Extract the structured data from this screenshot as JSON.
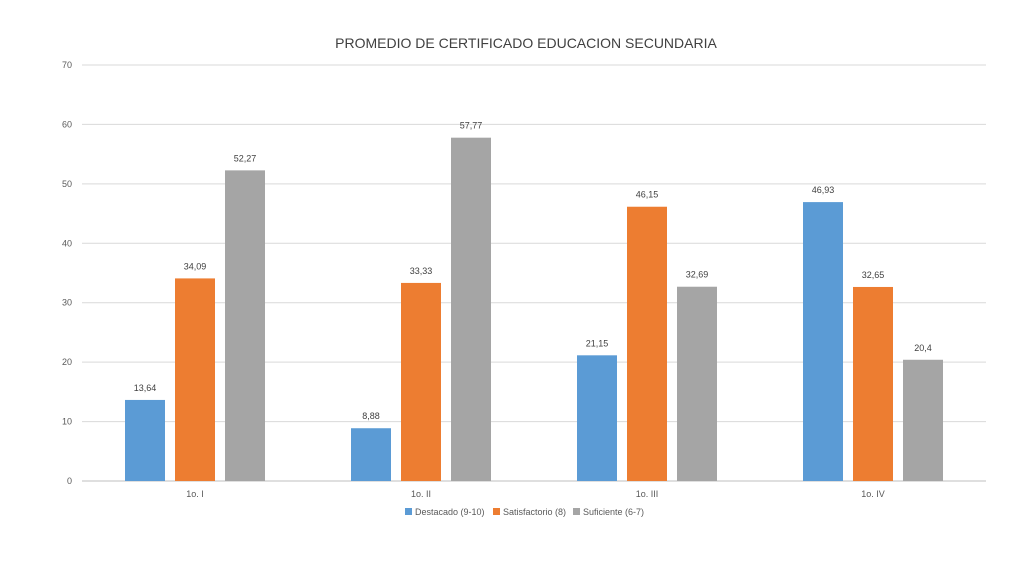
{
  "chart_data": {
    "type": "bar",
    "title": "PROMEDIO DE CERTIFICADO EDUCACION SECUNDARIA",
    "categories": [
      "1o. I",
      "1o. II",
      "1o. III",
      "1o. IV"
    ],
    "series": [
      {
        "name": "Destacado (9-10)",
        "color": "#5b9bd5",
        "values": [
          13.64,
          8.88,
          21.15,
          46.93
        ],
        "labels": [
          "13,64",
          "8,88",
          "21,15",
          "46,93"
        ]
      },
      {
        "name": "Satisfactorio (8)",
        "color": "#ed7d31",
        "values": [
          34.09,
          33.33,
          46.15,
          32.65
        ],
        "labels": [
          "34,09",
          "33,33",
          "46,15",
          "32,65"
        ]
      },
      {
        "name": "Suficiente (6-7)",
        "color": "#a5a5a5",
        "values": [
          52.27,
          57.77,
          32.69,
          20.4
        ],
        "labels": [
          "52,27",
          "57,77",
          "32,69",
          "20,4"
        ]
      }
    ],
    "ylim": [
      0,
      70
    ],
    "yticks": [
      "0",
      "10",
      "20",
      "30",
      "40",
      "50",
      "60",
      "70"
    ],
    "grid": true,
    "legend": "bottom"
  }
}
